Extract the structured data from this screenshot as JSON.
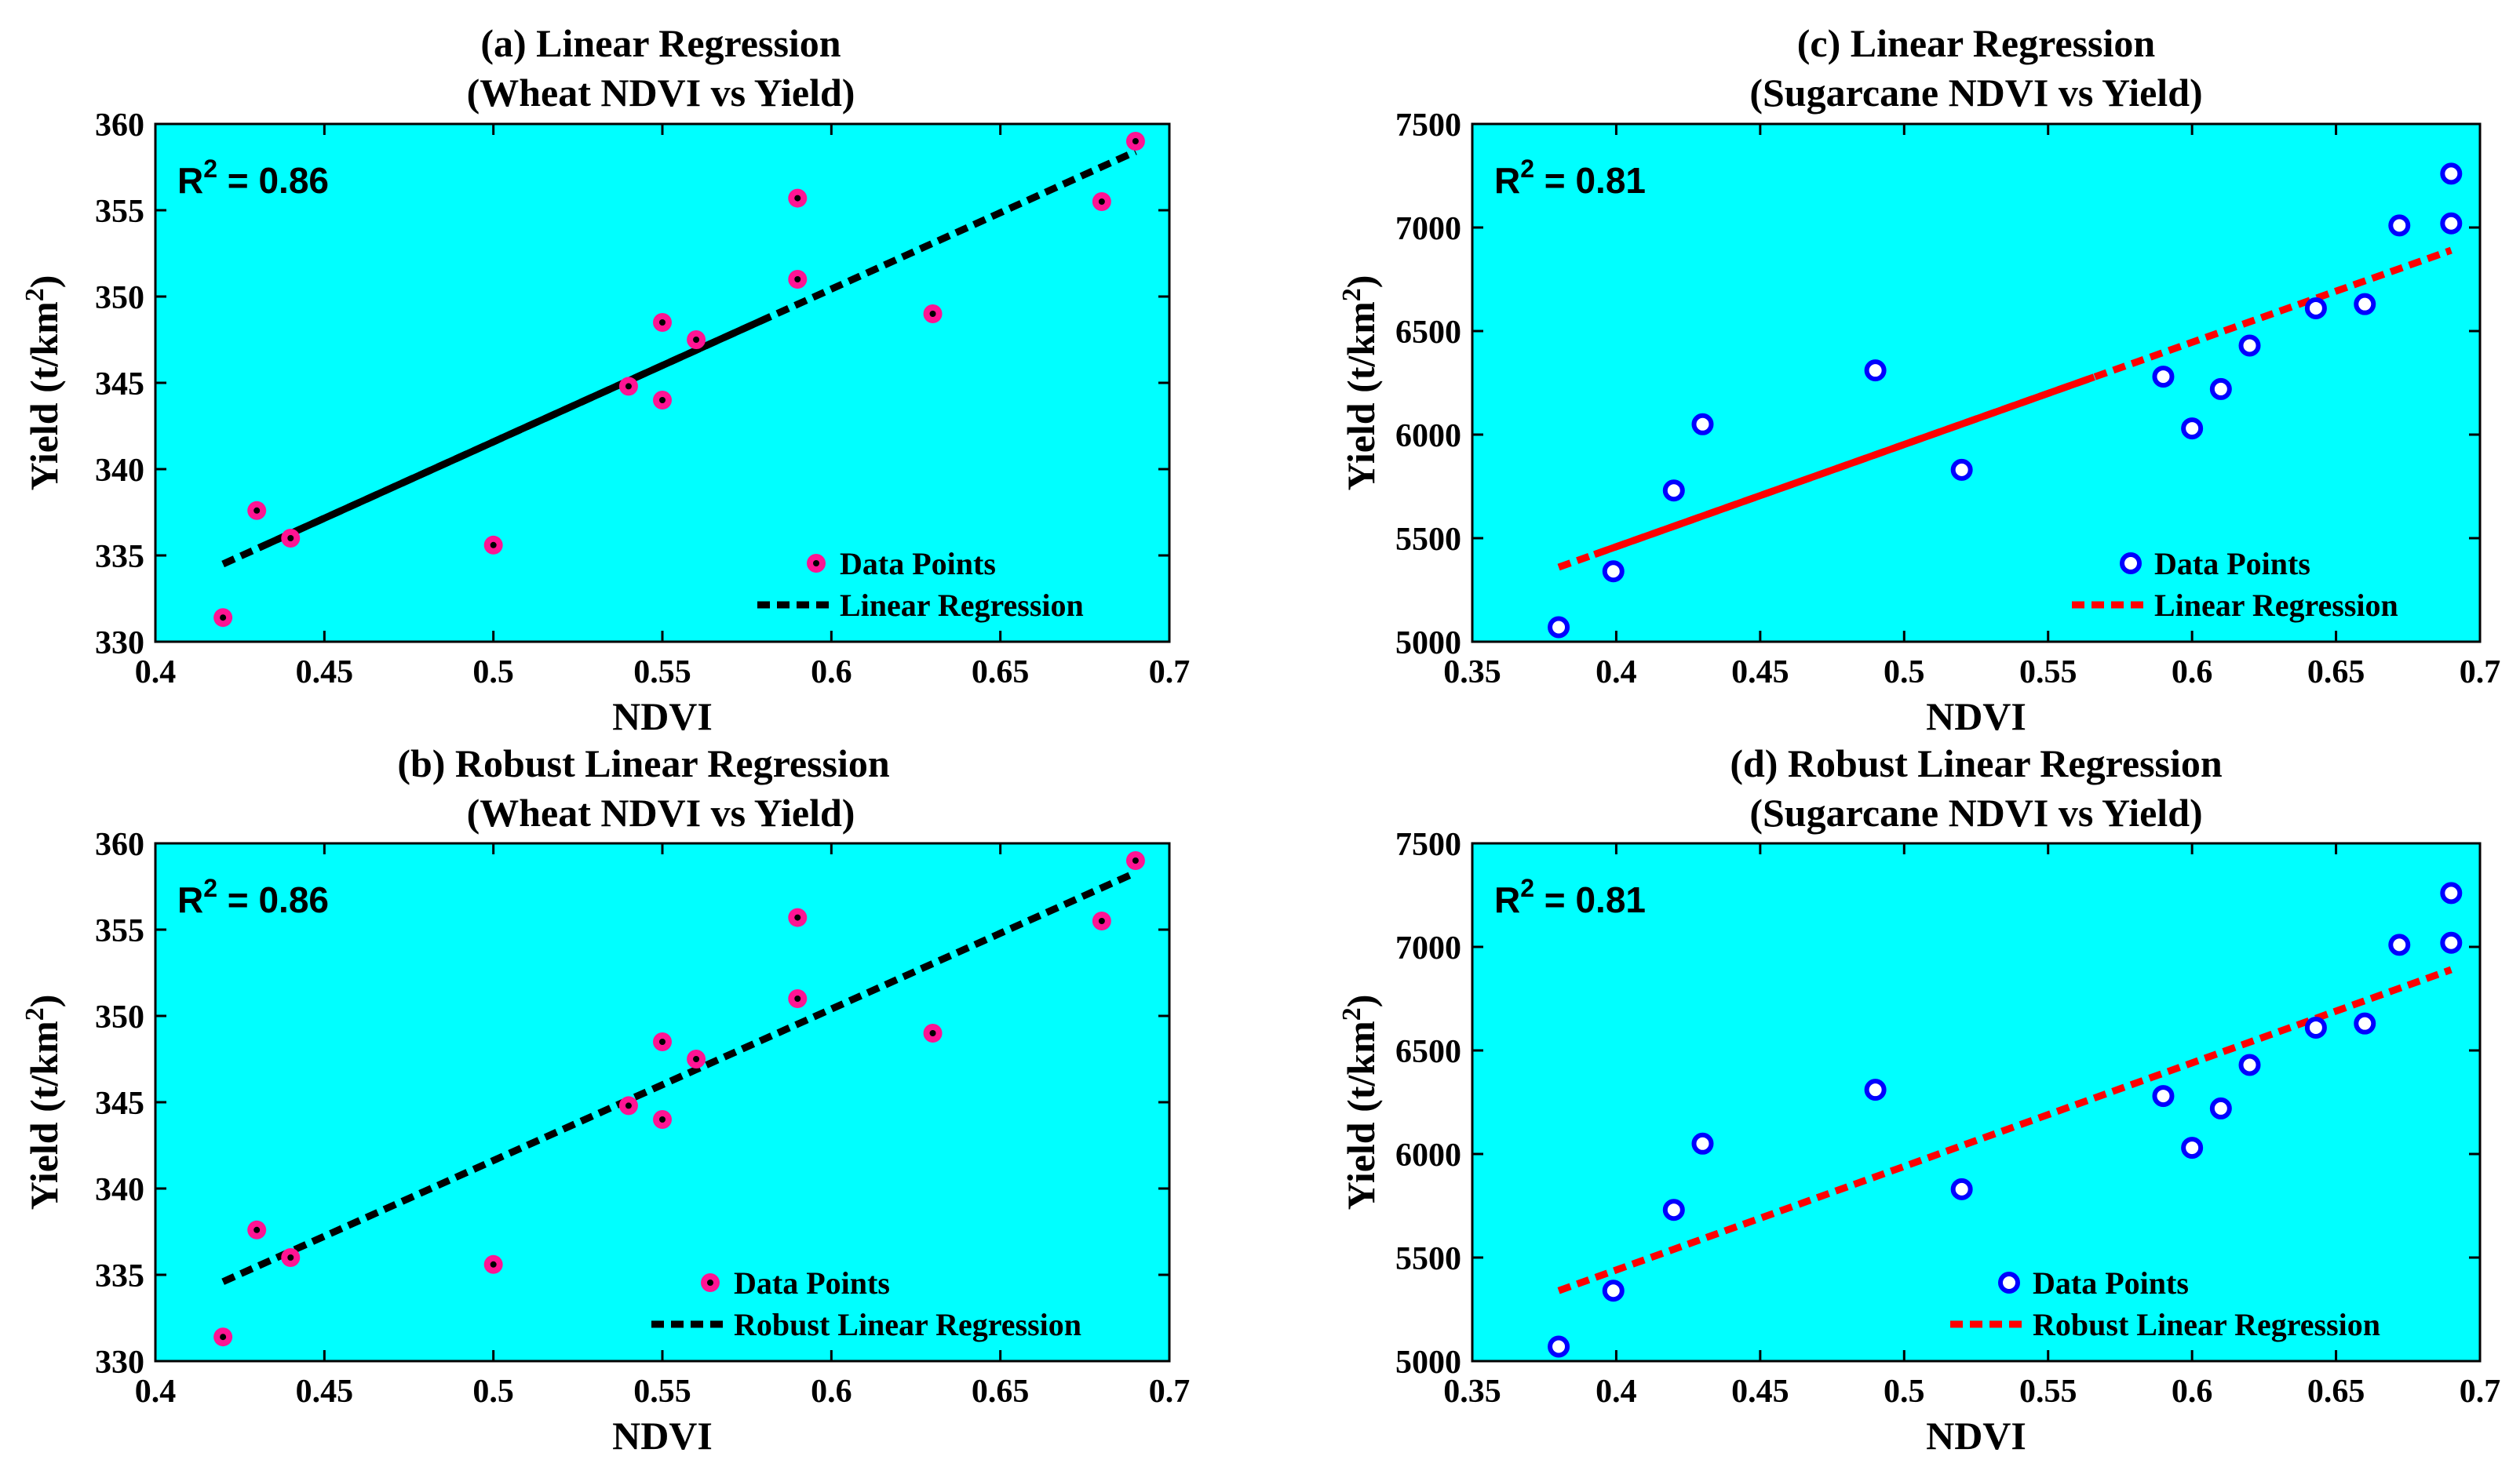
{
  "figure": {
    "background": "#ffffff",
    "plot_background": "#00ffff"
  },
  "chart_data": [
    {
      "id": "a",
      "type": "scatter",
      "title_line1": "(a) Linear Regression",
      "title_line2": "(Wheat NDVI vs Yield)",
      "xlabel": "NDVI",
      "ylabel_main": "Yield (t/km",
      "ylabel_sup": "2",
      "ylabel_end": ")",
      "xlim": [
        0.4,
        0.7
      ],
      "ylim": [
        330,
        360
      ],
      "xticks": [
        0.4,
        0.45,
        0.5,
        0.55,
        0.6,
        0.65,
        0.7
      ],
      "xtick_labels": [
        "0.4",
        "0.45",
        "0.5",
        "0.55",
        "0.6",
        "0.65",
        "0.7"
      ],
      "yticks": [
        330,
        335,
        340,
        345,
        350,
        355,
        360
      ],
      "ytick_labels": [
        "330",
        "335",
        "340",
        "345",
        "350",
        "355",
        "360"
      ],
      "r2_prefix": "R",
      "r2_sup": "2",
      "r2_value": " = 0.86",
      "points": {
        "x": [
          0.42,
          0.43,
          0.44,
          0.5,
          0.54,
          0.55,
          0.55,
          0.56,
          0.59,
          0.59,
          0.63,
          0.68,
          0.69
        ],
        "y": [
          331.4,
          337.6,
          336.0,
          335.6,
          344.8,
          344.0,
          348.5,
          347.5,
          355.7,
          351.0,
          349.0,
          355.5,
          359.0
        ]
      },
      "marker": "pink",
      "line": {
        "x": [
          0.42,
          0.69
        ],
        "y": [
          334.5,
          358.4
        ],
        "style": "solid-dashed",
        "color": "#000000"
      },
      "legend": {
        "points_label": "Data Points",
        "line_label": "Linear Regression",
        "position": "bottom-right"
      }
    },
    {
      "id": "b",
      "type": "scatter",
      "title_line1": "(b) Robust Linear Regression",
      "title_line2": "(Wheat NDVI vs Yield)",
      "xlabel": "NDVI",
      "ylabel_main": "Yield (t/km",
      "ylabel_sup": "2",
      "ylabel_end": ")",
      "xlim": [
        0.4,
        0.7
      ],
      "ylim": [
        330,
        360
      ],
      "xticks": [
        0.4,
        0.45,
        0.5,
        0.55,
        0.6,
        0.65,
        0.7
      ],
      "xtick_labels": [
        "0.4",
        "0.45",
        "0.5",
        "0.55",
        "0.6",
        "0.65",
        "0.7"
      ],
      "yticks": [
        330,
        335,
        340,
        345,
        350,
        355,
        360
      ],
      "ytick_labels": [
        "330",
        "335",
        "340",
        "345",
        "350",
        "355",
        "360"
      ],
      "r2_prefix": "R",
      "r2_sup": "2",
      "r2_value": " = 0.86",
      "points": {
        "x": [
          0.42,
          0.43,
          0.44,
          0.5,
          0.54,
          0.55,
          0.55,
          0.56,
          0.59,
          0.59,
          0.63,
          0.68,
          0.69
        ],
        "y": [
          331.4,
          337.6,
          336.0,
          335.6,
          344.8,
          344.0,
          348.5,
          347.5,
          355.7,
          351.0,
          349.0,
          355.5,
          359.0
        ]
      },
      "marker": "pink",
      "line": {
        "x": [
          0.42,
          0.69
        ],
        "y": [
          334.6,
          358.3
        ],
        "style": "dashed",
        "color": "#000000"
      },
      "legend": {
        "points_label": "Data Points",
        "line_label": "Robust Linear Regression",
        "position": "bottom-right"
      }
    },
    {
      "id": "c",
      "type": "scatter",
      "title_line1": "(c) Linear Regression",
      "title_line2": "(Sugarcane NDVI vs Yield)",
      "xlabel": "NDVI",
      "ylabel_main": "Yield (t/km",
      "ylabel_sup": "2",
      "ylabel_end": ")",
      "xlim": [
        0.35,
        0.7
      ],
      "ylim": [
        5000,
        7500
      ],
      "xticks": [
        0.35,
        0.4,
        0.45,
        0.5,
        0.55,
        0.6,
        0.65,
        0.7
      ],
      "xtick_labels": [
        "0.35",
        "0.4",
        "0.45",
        "0.5",
        "0.55",
        "0.6",
        "0.65",
        "0.7"
      ],
      "yticks": [
        5000,
        5500,
        6000,
        6500,
        7000,
        7500
      ],
      "ytick_labels": [
        "5000",
        "5500",
        "6000",
        "6500",
        "7000",
        "7500"
      ],
      "r2_prefix": "R",
      "r2_sup": "2",
      "r2_value": " = 0.81",
      "points": {
        "x": [
          0.38,
          0.399,
          0.42,
          0.43,
          0.49,
          0.52,
          0.59,
          0.6,
          0.61,
          0.62,
          0.643,
          0.66,
          0.672,
          0.69,
          0.69
        ],
        "y": [
          5070,
          5340,
          5730,
          6050,
          6310,
          5830,
          6280,
          6030,
          6220,
          6430,
          6610,
          6630,
          7010,
          7020,
          7260
        ]
      },
      "marker": "blue-ring",
      "line": {
        "x": [
          0.38,
          0.69
        ],
        "y": [
          5360,
          6890
        ],
        "style": "solid-dashed",
        "color": "#ff0000"
      },
      "legend": {
        "points_label": "Data Points",
        "line_label": "Linear Regression",
        "position": "bottom-right"
      }
    },
    {
      "id": "d",
      "type": "scatter",
      "title_line1": "(d) Robust Linear Regression",
      "title_line2": "(Sugarcane NDVI vs Yield)",
      "xlabel": "NDVI",
      "ylabel_main": "Yield (t/km",
      "ylabel_sup": "2",
      "ylabel_end": ")",
      "xlim": [
        0.35,
        0.7
      ],
      "ylim": [
        5000,
        7500
      ],
      "xticks": [
        0.35,
        0.4,
        0.45,
        0.5,
        0.55,
        0.6,
        0.65,
        0.7
      ],
      "xtick_labels": [
        "0.35",
        "0.4",
        "0.45",
        "0.5",
        "0.55",
        "0.6",
        "0.65",
        "0.7"
      ],
      "yticks": [
        5000,
        5500,
        6000,
        6500,
        7000,
        7500
      ],
      "ytick_labels": [
        "5000",
        "5500",
        "6000",
        "6500",
        "7000",
        "7500"
      ],
      "r2_prefix": "R",
      "r2_sup": "2",
      "r2_value": " = 0.81",
      "points": {
        "x": [
          0.38,
          0.399,
          0.42,
          0.43,
          0.49,
          0.52,
          0.59,
          0.6,
          0.61,
          0.62,
          0.643,
          0.66,
          0.672,
          0.69,
          0.69
        ],
        "y": [
          5070,
          5340,
          5730,
          6050,
          6310,
          5830,
          6280,
          6030,
          6220,
          6430,
          6610,
          6630,
          7010,
          7020,
          7260
        ]
      },
      "marker": "blue-ring",
      "line": {
        "x": [
          0.38,
          0.69
        ],
        "y": [
          5340,
          6890
        ],
        "style": "dashed",
        "color": "#ff0000"
      },
      "legend": {
        "points_label": "Data Points",
        "line_label": "Robust Linear Regression",
        "position": "bottom-right"
      }
    }
  ]
}
